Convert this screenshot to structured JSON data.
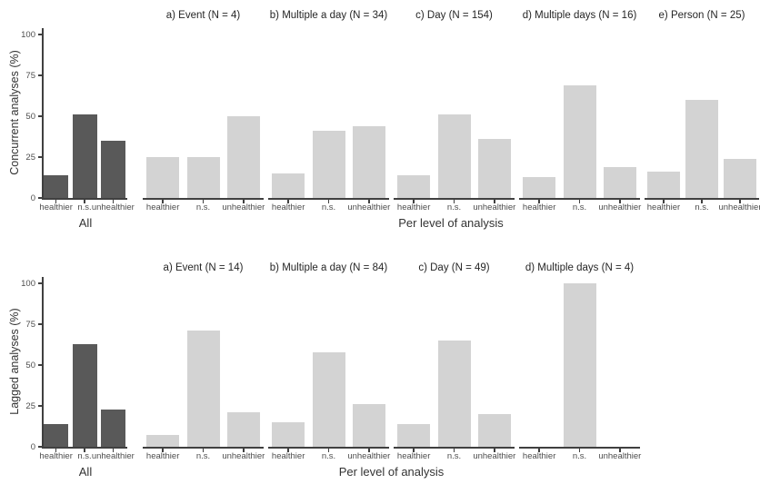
{
  "figure": {
    "background": "#ffffff",
    "bar_dark": "#595959",
    "bar_light": "#d3d3d3",
    "axis_color": "#404040",
    "tick_text_color": "#4d4d4d",
    "title_text_color": "#262626"
  },
  "chart_data": [
    {
      "type": "bar",
      "ylabel": "Concurrent analyses (%)",
      "xlabel": "Per level of analysis",
      "ylim": [
        0,
        100
      ],
      "yticks": [
        0,
        25,
        50,
        75,
        100
      ],
      "grid": false,
      "legend": false,
      "categories": [
        "healthier",
        "n.s.",
        "unhealthier"
      ],
      "all_panel": {
        "label": "All",
        "values": [
          14,
          51,
          35
        ]
      },
      "panels": [
        {
          "title": "a) Event (N = 4)",
          "values": [
            25,
            25,
            50
          ]
        },
        {
          "title": "b) Multiple a day (N = 34)",
          "values": [
            15,
            41,
            44
          ]
        },
        {
          "title": "c) Day (N = 154)",
          "values": [
            14,
            51,
            36
          ]
        },
        {
          "title": "d) Multiple days (N = 16)",
          "values": [
            13,
            69,
            19
          ]
        },
        {
          "title": "e) Person (N = 25)",
          "values": [
            16,
            60,
            24
          ]
        }
      ]
    },
    {
      "type": "bar",
      "ylabel": "Lagged analyses (%)",
      "xlabel": "Per level of analysis",
      "ylim": [
        0,
        100
      ],
      "yticks": [
        0,
        25,
        50,
        75,
        100
      ],
      "grid": false,
      "legend": false,
      "categories": [
        "healthier",
        "n.s.",
        "unhealthier"
      ],
      "all_panel": {
        "label": "All",
        "values": [
          14,
          63,
          23
        ]
      },
      "panels": [
        {
          "title": "a) Event (N = 14)",
          "values": [
            7,
            71,
            21
          ]
        },
        {
          "title": "b) Multiple a day (N = 84)",
          "values": [
            15,
            58,
            26
          ]
        },
        {
          "title": "c) Day (N = 49)",
          "values": [
            14,
            65,
            20
          ]
        },
        {
          "title": "d) Multiple days (N = 4)",
          "values": [
            0,
            100,
            0
          ]
        }
      ]
    }
  ]
}
